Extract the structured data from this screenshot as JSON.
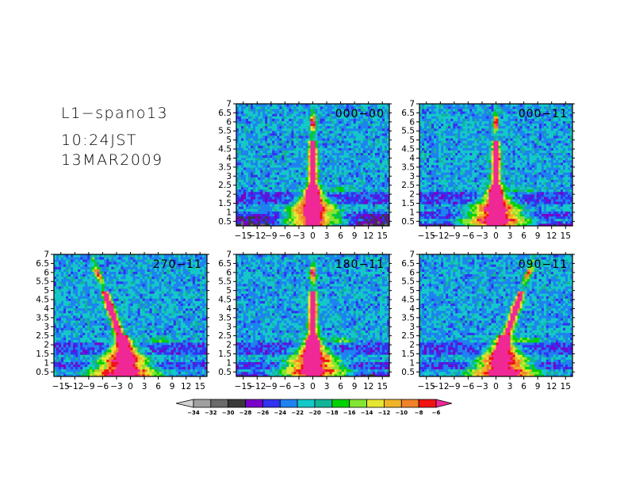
{
  "header": {
    "name": "L1−spano13",
    "time": "10:24JST",
    "date": "13MAR2009"
  },
  "chart_data": {
    "type": "heatmap",
    "x_ticks": [
      -15,
      -12,
      -9,
      -6,
      -3,
      0,
      3,
      6,
      9,
      12,
      15
    ],
    "x_tick_labels": [
      "−15",
      "−12",
      "−9",
      "−6",
      "−3",
      "0",
      "3",
      "6",
      "9",
      "12",
      "15"
    ],
    "xlim": [
      -16.5,
      16.5
    ],
    "y_ticks": [
      0.5,
      1,
      1.5,
      2,
      2.5,
      3,
      3.5,
      4,
      4.5,
      5,
      5.5,
      6,
      6.5,
      7
    ],
    "y_tick_labels": [
      "0.5",
      "1",
      "1.5",
      "2",
      "2.5",
      "3",
      "3.5",
      "4",
      "4.5",
      "5",
      "5.5",
      "6",
      "6.5",
      "7"
    ],
    "ylim": [
      0.25,
      7
    ],
    "panels": [
      {
        "label": "000−00",
        "row": 0,
        "col": 1,
        "shift": 0,
        "noise_floor": 0.9
      },
      {
        "label": "000−11",
        "row": 0,
        "col": 2,
        "shift": 0,
        "noise_floor": 0.5
      },
      {
        "label": "270−11",
        "row": 1,
        "col": 0,
        "shift": -3,
        "noise_floor": 0
      },
      {
        "label": "180−11",
        "row": 1,
        "col": 1,
        "shift": 0,
        "noise_floor": 0.5
      },
      {
        "label": "090−11",
        "row": 1,
        "col": 2,
        "shift": 3,
        "noise_floor": 0.3
      }
    ],
    "colorbar": {
      "levels": [
        -34,
        -32,
        -30,
        -28,
        -26,
        -24,
        -22,
        -20,
        -18,
        -16,
        -14,
        -12,
        -10,
        -8,
        -6
      ],
      "labels": [
        "−34",
        "−32",
        "−30",
        "−28",
        "−26",
        "−24",
        "−22",
        "−20",
        "−18",
        "−16",
        "−14",
        "−12",
        "−10",
        "−8",
        "−6"
      ],
      "colors": [
        "#d2d2d2",
        "#a0a0a0",
        "#6a6a6a",
        "#3a3a3a",
        "#7800c8",
        "#3232f0",
        "#1e82f0",
        "#14c8c8",
        "#12b496",
        "#00d200",
        "#82e632",
        "#e6e632",
        "#f0b428",
        "#f08228",
        "#f01414",
        "#f02896"
      ]
    }
  }
}
